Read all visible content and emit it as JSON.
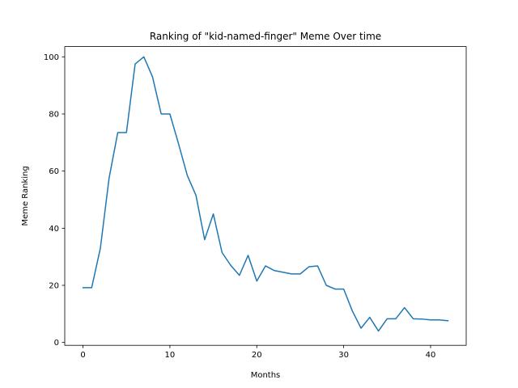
{
  "chart_data": {
    "type": "line",
    "title": "Ranking of \"kid-named-finger\" Meme Over time",
    "xlabel": "Months",
    "ylabel": "Meme Ranking",
    "xlim": [
      -2.1,
      44.1
    ],
    "ylim": [
      -1.0,
      103.6
    ],
    "xticks": [
      0,
      10,
      20,
      30,
      40
    ],
    "yticks": [
      0,
      20,
      40,
      60,
      80,
      100
    ],
    "grid": false,
    "series": [
      {
        "color": "#1f77b4",
        "x": [
          0,
          1,
          2,
          3,
          4,
          5,
          6,
          7,
          8,
          9,
          10,
          11,
          12,
          13,
          14,
          15,
          16,
          17,
          18,
          19,
          20,
          21,
          22,
          23,
          24,
          25,
          26,
          27,
          28,
          29,
          30,
          31,
          32,
          33,
          34,
          35,
          36,
          37,
          38,
          39,
          40,
          41,
          42
        ],
        "values": [
          19.2,
          19.2,
          33.0,
          57.5,
          73.5,
          73.5,
          97.5,
          100.0,
          93.0,
          80.0,
          80.0,
          69.5,
          58.5,
          51.5,
          36.0,
          45.0,
          31.5,
          27.0,
          23.5,
          30.5,
          21.5,
          26.8,
          25.2,
          24.6,
          24.0,
          24.0,
          26.5,
          26.8,
          20.0,
          18.7,
          18.7,
          11.0,
          5.0,
          8.8,
          4.0,
          8.3,
          8.3,
          12.2,
          8.3,
          8.2,
          7.9,
          7.9,
          7.6
        ]
      }
    ]
  }
}
